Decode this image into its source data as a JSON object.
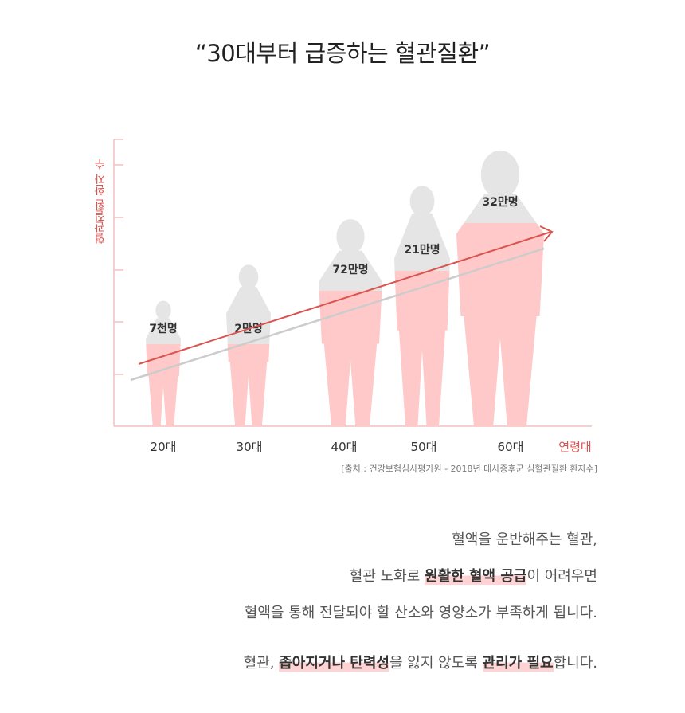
{
  "title": "“30대부터 급증하는 혈관질환”",
  "chart_data": {
    "type": "bar",
    "title": "“30대부터 급증하는 혈관질환”",
    "ylabel": "혈관질환 환자 수",
    "xlabel": "연령대",
    "categories": [
      "20대",
      "30대",
      "40대",
      "50대",
      "60대"
    ],
    "data_labels": [
      "7천명",
      "2만명",
      "72만명",
      "21만명",
      "32만명"
    ],
    "values": [
      7000,
      20000,
      720000,
      210000,
      320000
    ],
    "grid": false,
    "trend_arrow": true,
    "colors": {
      "silhouette": "#e5e5e5",
      "fill": "#ffc9c9",
      "trend": "#d9534f",
      "trend_shadow": "#cccccc",
      "axis": "#f4c0c0"
    }
  },
  "source": "[출처 : 건강보험심사평가원 - 2018년 대사증후군 심혈관질환 환자수]",
  "paragraph1": {
    "line1": "혈액을 운반해주는 혈관,",
    "line2_a": "혈관 노화로 ",
    "line2_hl": "원활한 혈액 공급",
    "line2_b": "이 어려우면",
    "line3": "혈액을 통해 전달되야 할 산소와 영양소가 부족하게 됩니다."
  },
  "paragraph2": {
    "a": "혈관, ",
    "hl1": "좁아지거나 탄력성",
    "b": "을 잃지 않도록 ",
    "hl2": "관리가 필요",
    "c": "합니다."
  }
}
